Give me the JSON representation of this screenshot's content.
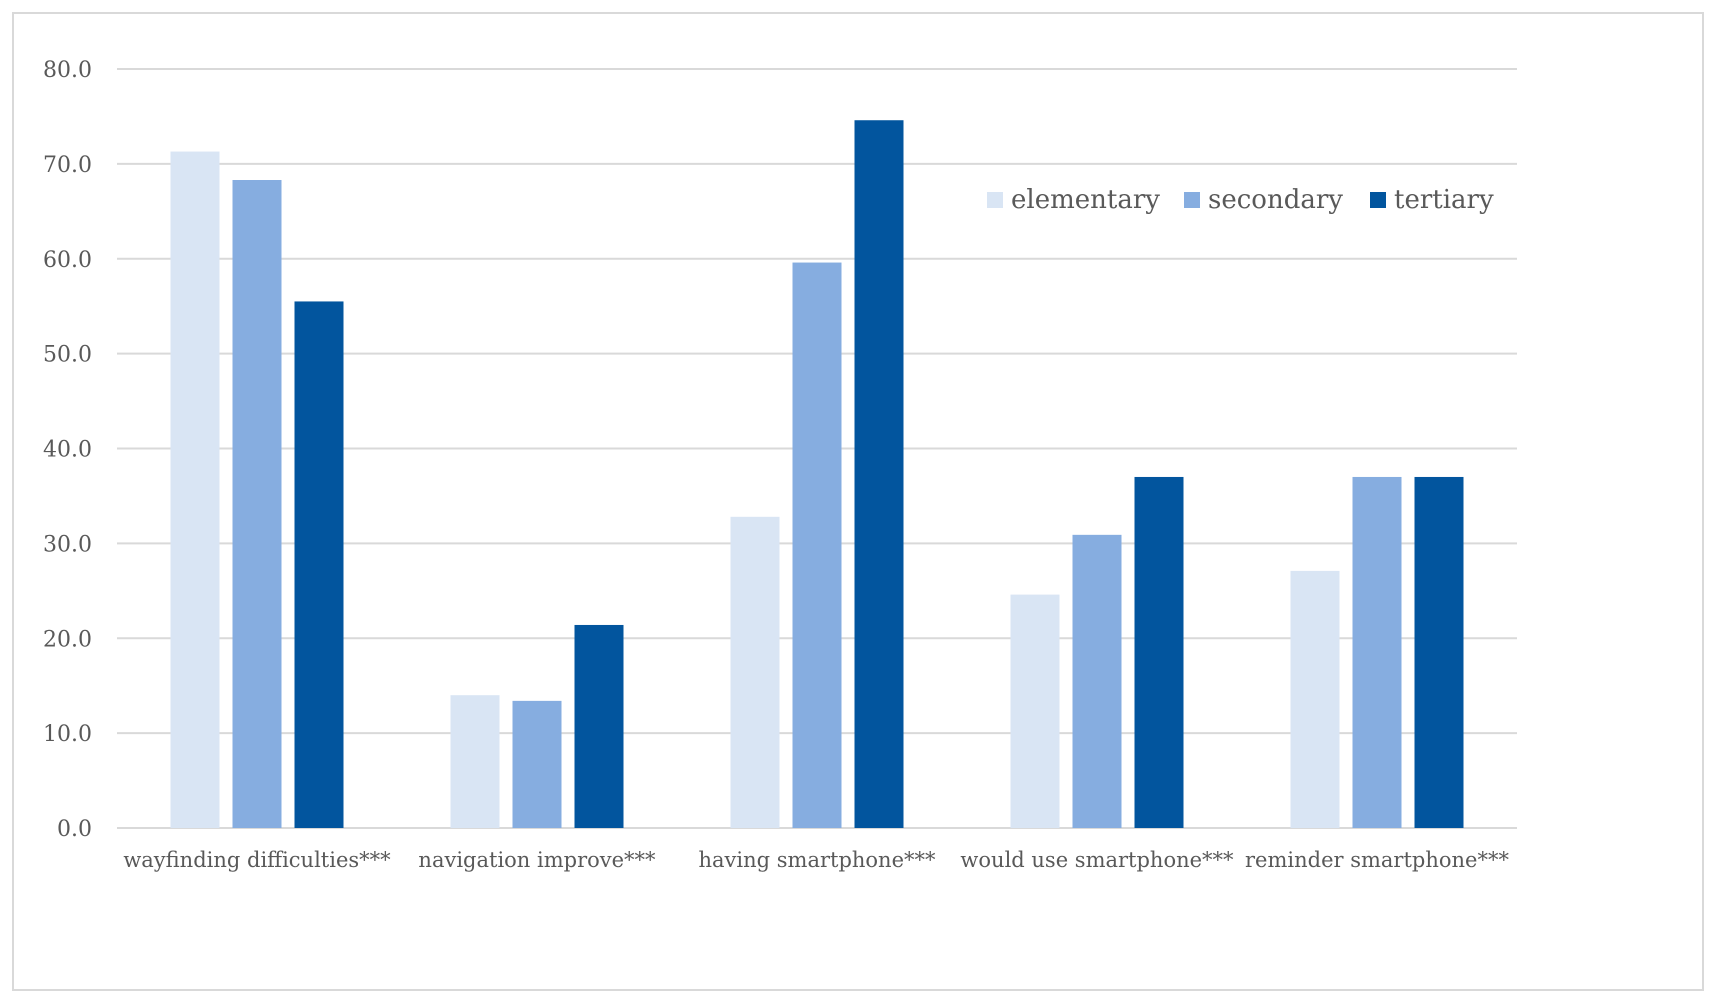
{
  "chart_data": {
    "type": "bar",
    "title": "",
    "xlabel": "",
    "ylabel": "",
    "categories": [
      "wayfinding difficulties***",
      "navigation improve***",
      "having smartphone***",
      "would use smartphone***",
      "reminder smartphone***"
    ],
    "series": [
      {
        "name": "elementary",
        "color": "#d9e5f4",
        "values": [
          71.3,
          14.0,
          32.8,
          24.6,
          27.1
        ]
      },
      {
        "name": "secondary",
        "color": "#86ade0",
        "values": [
          68.3,
          13.4,
          59.6,
          30.9,
          37.0
        ]
      },
      {
        "name": "tertiary",
        "color": "#02559e",
        "values": [
          55.5,
          21.4,
          74.6,
          37.0,
          37.0
        ]
      }
    ],
    "ylim": [
      0,
      80
    ],
    "yticks": [
      0,
      10,
      20,
      30,
      40,
      50,
      60,
      70,
      80
    ],
    "ytick_labels": [
      "0.0",
      "10.0",
      "20.0",
      "30.0",
      "40.0",
      "50.0",
      "60.0",
      "70.0",
      "80.0"
    ],
    "grid": true,
    "legend_position": "upper-right",
    "colors": {
      "grid": "#d9d9d9",
      "axis_text": "#595959"
    }
  }
}
